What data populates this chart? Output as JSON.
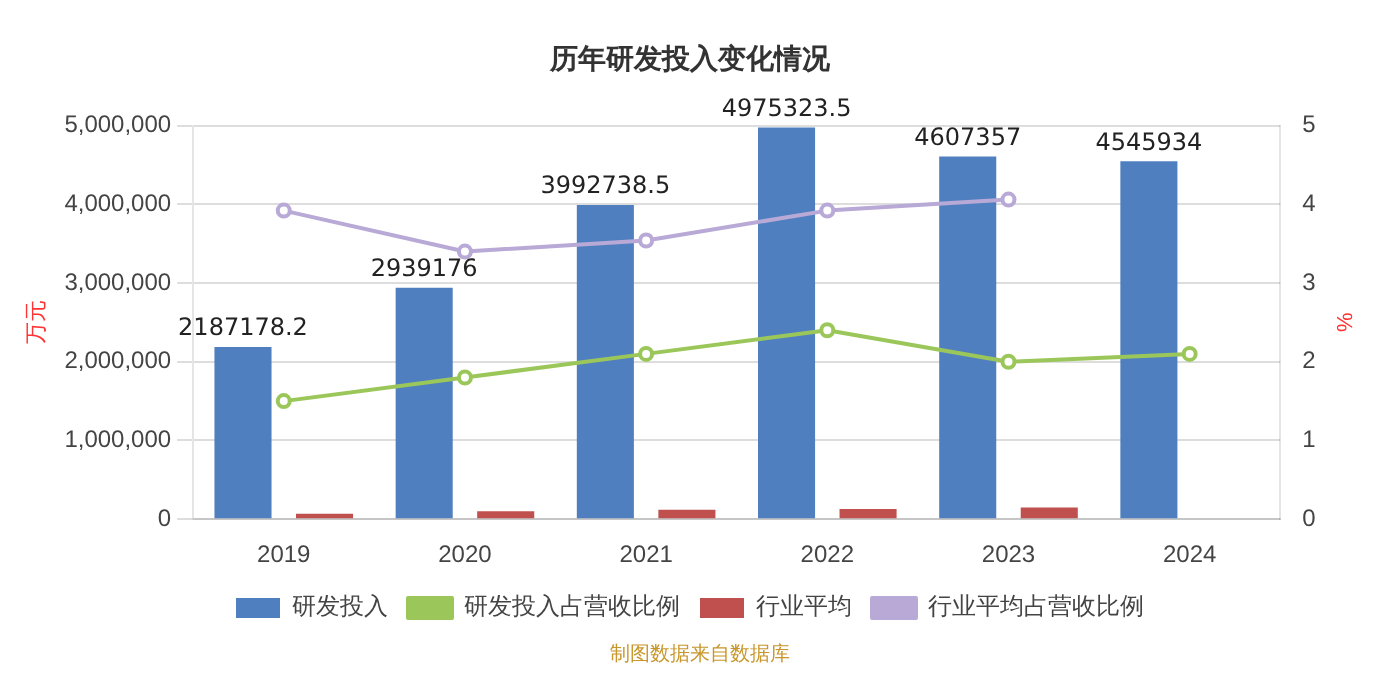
{
  "chart_data": {
    "type": "bar",
    "title": "历年研发投入变化情况",
    "categories": [
      "2019",
      "2020",
      "2021",
      "2022",
      "2023",
      "2024"
    ],
    "ylabel": "万元",
    "y2label": "%",
    "ylim": [
      0,
      5000000
    ],
    "yticks": [
      {
        "value": 0,
        "label": "0"
      },
      {
        "value": 1000000,
        "label": "1,000,000"
      },
      {
        "value": 2000000,
        "label": "2,000,000"
      },
      {
        "value": 3000000,
        "label": "3,000,000"
      },
      {
        "value": 4000000,
        "label": "4,000,000"
      },
      {
        "value": 5000000,
        "label": "5,000,000"
      }
    ],
    "y2lim": [
      0,
      5
    ],
    "y2ticks": [
      0,
      1,
      2,
      3,
      4,
      5
    ],
    "grid": "y",
    "legend": "bottom",
    "series": [
      {
        "name": "研发投入",
        "color": "#4f7fbf",
        "values": [
          2187178.2,
          2939176,
          3992738.5,
          4975323.5,
          4607357,
          4545934
        ],
        "value_labels": [
          "2187178.2",
          "2939176",
          "3992738.5",
          "4975323.5",
          "4607357",
          "4545934"
        ]
      },
      {
        "name": "研发投入占营收比例",
        "type": "line",
        "axis": "y2",
        "color": "#9bc75a",
        "marker": "circle",
        "values": [
          1.5,
          1.8,
          2.1,
          2.4,
          2.0,
          2.1
        ]
      },
      {
        "name": "行业平均",
        "color": "#c0504d",
        "values": [
          70000,
          100000,
          120000,
          130000,
          150000,
          null
        ]
      },
      {
        "name": "行业平均占营收比例",
        "type": "line",
        "axis": "y2",
        "color": "#b8a9d6",
        "marker": "circle",
        "values": [
          3.92,
          3.4,
          3.54,
          3.92,
          4.06,
          null
        ]
      }
    ],
    "annotations": [
      "制图数据来自数据库"
    ]
  }
}
